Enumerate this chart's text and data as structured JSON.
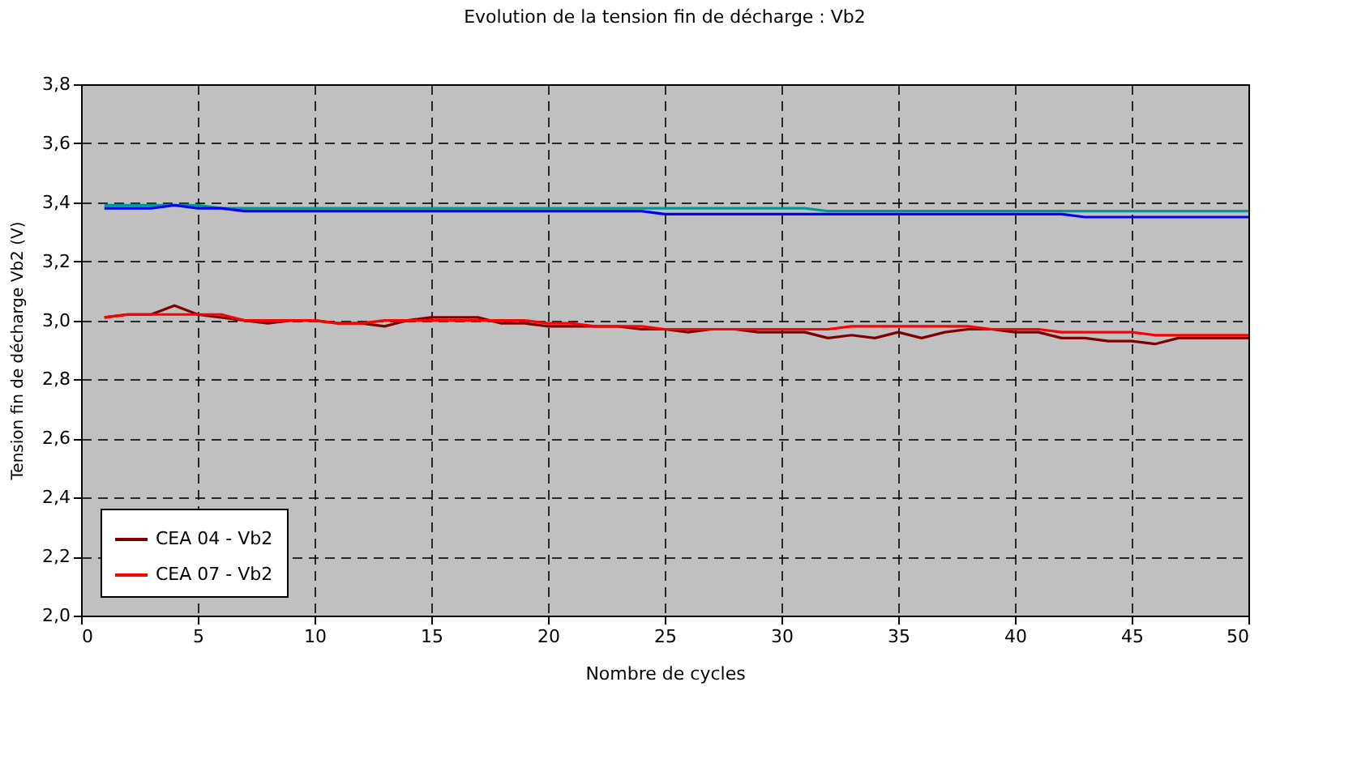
{
  "chart_data": {
    "type": "line",
    "title": "Evolution de la tension fin de décharge : Vb2",
    "xlabel": "Nombre de cycles",
    "ylabel": "Tension fin de décharge Vb2 (V)",
    "x": [
      1,
      2,
      3,
      4,
      5,
      6,
      7,
      8,
      9,
      10,
      11,
      12,
      13,
      14,
      15,
      16,
      17,
      18,
      19,
      20,
      21,
      22,
      23,
      24,
      25,
      26,
      27,
      28,
      29,
      30,
      31,
      32,
      33,
      34,
      35,
      36,
      37,
      38,
      39,
      40,
      41,
      42,
      43,
      44,
      45,
      46,
      47,
      48,
      49,
      50
    ],
    "xlim": [
      0,
      50
    ],
    "xticks": [
      0,
      5,
      10,
      15,
      20,
      25,
      30,
      35,
      40,
      45,
      50
    ],
    "ylim": [
      2.0,
      3.8
    ],
    "yticks": [
      {
        "value": 2.0,
        "label": "2,0"
      },
      {
        "value": 2.2,
        "label": "2,2"
      },
      {
        "value": 2.4,
        "label": "2,4"
      },
      {
        "value": 2.6,
        "label": "2,6"
      },
      {
        "value": 2.8,
        "label": "2,8"
      },
      {
        "value": 3.0,
        "label": "3,0"
      },
      {
        "value": 3.2,
        "label": "3,2"
      },
      {
        "value": 3.4,
        "label": "3,4"
      },
      {
        "value": 3.6,
        "label": "3,6"
      },
      {
        "value": 3.8,
        "label": "3,8"
      }
    ],
    "grid": true,
    "legend": "bottom left",
    "marker": "none",
    "line_style": "solid",
    "series": [
      {
        "name": "CEA 04 - Vb2",
        "color": "#800000",
        "values": [
          3.01,
          3.02,
          3.02,
          3.05,
          3.02,
          3.01,
          3.0,
          2.99,
          3.0,
          3.0,
          2.99,
          2.99,
          2.98,
          3.0,
          3.01,
          3.01,
          3.01,
          2.99,
          2.99,
          2.98,
          2.98,
          2.98,
          2.98,
          2.97,
          2.97,
          2.96,
          2.97,
          2.97,
          2.96,
          2.96,
          2.96,
          2.94,
          2.95,
          2.94,
          2.96,
          2.94,
          2.96,
          2.97,
          2.97,
          2.96,
          2.96,
          2.94,
          2.94,
          2.93,
          2.93,
          2.92,
          2.94,
          2.94,
          2.94,
          2.94
        ]
      },
      {
        "name": "CEA 07 - Vb2",
        "color": "#ff0000",
        "values": [
          3.01,
          3.02,
          3.02,
          3.02,
          3.02,
          3.02,
          3.0,
          3.0,
          3.0,
          3.0,
          2.99,
          2.99,
          3.0,
          3.0,
          3.0,
          3.0,
          3.0,
          3.0,
          3.0,
          2.99,
          2.99,
          2.98,
          2.98,
          2.98,
          2.97,
          2.97,
          2.97,
          2.97,
          2.97,
          2.97,
          2.97,
          2.97,
          2.98,
          2.98,
          2.98,
          2.98,
          2.98,
          2.98,
          2.97,
          2.97,
          2.97,
          2.96,
          2.96,
          2.96,
          2.96,
          2.95,
          2.95,
          2.95,
          2.95,
          2.95
        ]
      },
      {
        "color": "#009999",
        "values": [
          3.39,
          3.39,
          3.39,
          3.39,
          3.39,
          3.38,
          3.38,
          3.38,
          3.38,
          3.38,
          3.38,
          3.38,
          3.38,
          3.38,
          3.38,
          3.38,
          3.38,
          3.38,
          3.38,
          3.38,
          3.38,
          3.38,
          3.38,
          3.38,
          3.38,
          3.38,
          3.38,
          3.38,
          3.38,
          3.38,
          3.38,
          3.37,
          3.37,
          3.37,
          3.37,
          3.37,
          3.37,
          3.37,
          3.37,
          3.37,
          3.37,
          3.37,
          3.37,
          3.37,
          3.37,
          3.37,
          3.37,
          3.37,
          3.37,
          3.37
        ]
      },
      {
        "color": "#0000ff",
        "values": [
          3.38,
          3.38,
          3.38,
          3.39,
          3.38,
          3.38,
          3.37,
          3.37,
          3.37,
          3.37,
          3.37,
          3.37,
          3.37,
          3.37,
          3.37,
          3.37,
          3.37,
          3.37,
          3.37,
          3.37,
          3.37,
          3.37,
          3.37,
          3.37,
          3.36,
          3.36,
          3.36,
          3.36,
          3.36,
          3.36,
          3.36,
          3.36,
          3.36,
          3.36,
          3.36,
          3.36,
          3.36,
          3.36,
          3.36,
          3.36,
          3.36,
          3.36,
          3.35,
          3.35,
          3.35,
          3.35,
          3.35,
          3.35,
          3.35,
          3.35
        ]
      }
    ]
  }
}
